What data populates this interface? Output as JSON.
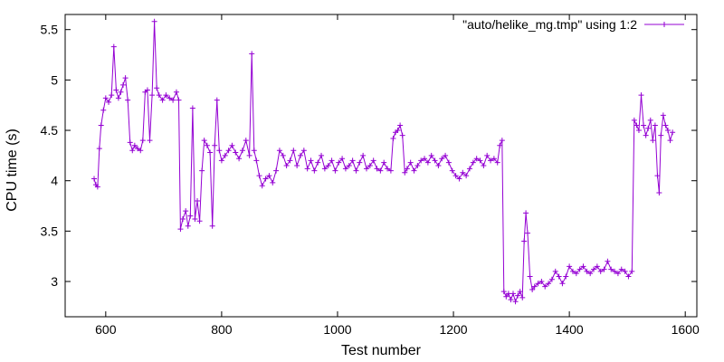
{
  "chart_data": {
    "type": "line",
    "xlabel": "Test number",
    "ylabel": "CPU time (s)",
    "xlim": [
      530,
      1620
    ],
    "ylim": [
      2.65,
      5.65
    ],
    "xticks": [
      600,
      800,
      1000,
      1200,
      1400,
      1600
    ],
    "yticks": [
      3,
      3.5,
      4,
      4.5,
      5,
      5.5
    ],
    "xtick_labels": [
      "600",
      "800",
      "1000",
      "1200",
      "1400",
      "1600"
    ],
    "ytick_labels": [
      "3",
      "3.5",
      "4",
      "4.5",
      "5",
      "5.5"
    ],
    "legend_position": "top-right",
    "grid": false,
    "series_color": "#9400D3",
    "series": [
      {
        "name": "\"auto/helike_mg.tmp\" using 1:2",
        "points": [
          [
            580,
            4.02
          ],
          [
            583,
            3.96
          ],
          [
            586,
            3.94
          ],
          [
            589,
            4.32
          ],
          [
            592,
            4.55
          ],
          [
            596,
            4.7
          ],
          [
            600,
            4.82
          ],
          [
            605,
            4.78
          ],
          [
            610,
            4.85
          ],
          [
            614,
            5.33
          ],
          [
            618,
            4.9
          ],
          [
            622,
            4.82
          ],
          [
            626,
            4.88
          ],
          [
            630,
            4.95
          ],
          [
            634,
            5.02
          ],
          [
            638,
            4.8
          ],
          [
            642,
            4.38
          ],
          [
            646,
            4.3
          ],
          [
            650,
            4.35
          ],
          [
            655,
            4.32
          ],
          [
            660,
            4.3
          ],
          [
            664,
            4.4
          ],
          [
            668,
            4.88
          ],
          [
            672,
            4.9
          ],
          [
            676,
            4.4
          ],
          [
            680,
            4.85
          ],
          [
            684,
            5.58
          ],
          [
            688,
            4.92
          ],
          [
            692,
            4.85
          ],
          [
            698,
            4.8
          ],
          [
            704,
            4.85
          ],
          [
            710,
            4.82
          ],
          [
            716,
            4.8
          ],
          [
            722,
            4.88
          ],
          [
            726,
            4.8
          ],
          [
            729,
            3.52
          ],
          [
            733,
            3.62
          ],
          [
            738,
            3.7
          ],
          [
            742,
            3.55
          ],
          [
            746,
            3.65
          ],
          [
            750,
            4.72
          ],
          [
            754,
            3.62
          ],
          [
            758,
            3.8
          ],
          [
            762,
            3.6
          ],
          [
            766,
            4.1
          ],
          [
            770,
            4.4
          ],
          [
            775,
            4.35
          ],
          [
            780,
            4.28
          ],
          [
            784,
            3.55
          ],
          [
            788,
            4.35
          ],
          [
            792,
            4.8
          ],
          [
            796,
            4.3
          ],
          [
            800,
            4.2
          ],
          [
            806,
            4.25
          ],
          [
            812,
            4.3
          ],
          [
            818,
            4.35
          ],
          [
            824,
            4.28
          ],
          [
            830,
            4.22
          ],
          [
            836,
            4.3
          ],
          [
            842,
            4.4
          ],
          [
            848,
            4.25
          ],
          [
            852,
            5.26
          ],
          [
            856,
            4.3
          ],
          [
            860,
            4.2
          ],
          [
            865,
            4.05
          ],
          [
            870,
            3.95
          ],
          [
            876,
            4.02
          ],
          [
            882,
            4.05
          ],
          [
            888,
            3.98
          ],
          [
            894,
            4.1
          ],
          [
            900,
            4.3
          ],
          [
            906,
            4.25
          ],
          [
            912,
            4.15
          ],
          [
            918,
            4.2
          ],
          [
            924,
            4.3
          ],
          [
            930,
            4.15
          ],
          [
            936,
            4.25
          ],
          [
            942,
            4.3
          ],
          [
            948,
            4.12
          ],
          [
            954,
            4.2
          ],
          [
            960,
            4.1
          ],
          [
            966,
            4.18
          ],
          [
            972,
            4.25
          ],
          [
            978,
            4.12
          ],
          [
            984,
            4.15
          ],
          [
            990,
            4.2
          ],
          [
            996,
            4.1
          ],
          [
            1002,
            4.18
          ],
          [
            1008,
            4.22
          ],
          [
            1014,
            4.12
          ],
          [
            1020,
            4.15
          ],
          [
            1026,
            4.2
          ],
          [
            1032,
            4.1
          ],
          [
            1038,
            4.18
          ],
          [
            1044,
            4.25
          ],
          [
            1050,
            4.12
          ],
          [
            1056,
            4.15
          ],
          [
            1062,
            4.2
          ],
          [
            1068,
            4.12
          ],
          [
            1074,
            4.1
          ],
          [
            1080,
            4.18
          ],
          [
            1086,
            4.12
          ],
          [
            1092,
            4.1
          ],
          [
            1096,
            4.42
          ],
          [
            1100,
            4.48
          ],
          [
            1104,
            4.5
          ],
          [
            1108,
            4.55
          ],
          [
            1112,
            4.45
          ],
          [
            1116,
            4.08
          ],
          [
            1120,
            4.12
          ],
          [
            1126,
            4.18
          ],
          [
            1132,
            4.1
          ],
          [
            1138,
            4.15
          ],
          [
            1144,
            4.2
          ],
          [
            1150,
            4.22
          ],
          [
            1156,
            4.18
          ],
          [
            1162,
            4.25
          ],
          [
            1168,
            4.2
          ],
          [
            1174,
            4.15
          ],
          [
            1180,
            4.22
          ],
          [
            1186,
            4.25
          ],
          [
            1192,
            4.18
          ],
          [
            1198,
            4.1
          ],
          [
            1204,
            4.05
          ],
          [
            1210,
            4.02
          ],
          [
            1216,
            4.08
          ],
          [
            1222,
            4.05
          ],
          [
            1228,
            4.12
          ],
          [
            1234,
            4.18
          ],
          [
            1240,
            4.22
          ],
          [
            1246,
            4.2
          ],
          [
            1252,
            4.15
          ],
          [
            1258,
            4.25
          ],
          [
            1264,
            4.2
          ],
          [
            1270,
            4.22
          ],
          [
            1276,
            4.18
          ],
          [
            1280,
            4.35
          ],
          [
            1284,
            4.4
          ],
          [
            1287,
            2.9
          ],
          [
            1291,
            2.85
          ],
          [
            1295,
            2.88
          ],
          [
            1299,
            2.82
          ],
          [
            1303,
            2.88
          ],
          [
            1307,
            2.8
          ],
          [
            1311,
            2.86
          ],
          [
            1315,
            2.9
          ],
          [
            1319,
            2.84
          ],
          [
            1322,
            3.4
          ],
          [
            1325,
            3.68
          ],
          [
            1328,
            3.48
          ],
          [
            1332,
            3.05
          ],
          [
            1336,
            2.92
          ],
          [
            1340,
            2.95
          ],
          [
            1346,
            2.98
          ],
          [
            1352,
            3.0
          ],
          [
            1358,
            2.95
          ],
          [
            1364,
            2.98
          ],
          [
            1370,
            3.02
          ],
          [
            1376,
            3.1
          ],
          [
            1382,
            3.05
          ],
          [
            1388,
            2.98
          ],
          [
            1394,
            3.05
          ],
          [
            1400,
            3.15
          ],
          [
            1406,
            3.1
          ],
          [
            1412,
            3.08
          ],
          [
            1418,
            3.12
          ],
          [
            1424,
            3.15
          ],
          [
            1430,
            3.1
          ],
          [
            1436,
            3.08
          ],
          [
            1442,
            3.12
          ],
          [
            1448,
            3.15
          ],
          [
            1454,
            3.1
          ],
          [
            1460,
            3.12
          ],
          [
            1466,
            3.2
          ],
          [
            1472,
            3.12
          ],
          [
            1478,
            3.1
          ],
          [
            1484,
            3.08
          ],
          [
            1490,
            3.12
          ],
          [
            1496,
            3.1
          ],
          [
            1502,
            3.05
          ],
          [
            1508,
            3.1
          ],
          [
            1512,
            4.6
          ],
          [
            1516,
            4.55
          ],
          [
            1520,
            4.5
          ],
          [
            1524,
            4.85
          ],
          [
            1528,
            4.55
          ],
          [
            1532,
            4.45
          ],
          [
            1536,
            4.52
          ],
          [
            1540,
            4.6
          ],
          [
            1544,
            4.4
          ],
          [
            1548,
            4.55
          ],
          [
            1552,
            4.05
          ],
          [
            1555,
            3.88
          ],
          [
            1558,
            4.45
          ],
          [
            1562,
            4.65
          ],
          [
            1566,
            4.55
          ],
          [
            1570,
            4.5
          ],
          [
            1574,
            4.4
          ],
          [
            1578,
            4.48
          ]
        ]
      }
    ]
  }
}
